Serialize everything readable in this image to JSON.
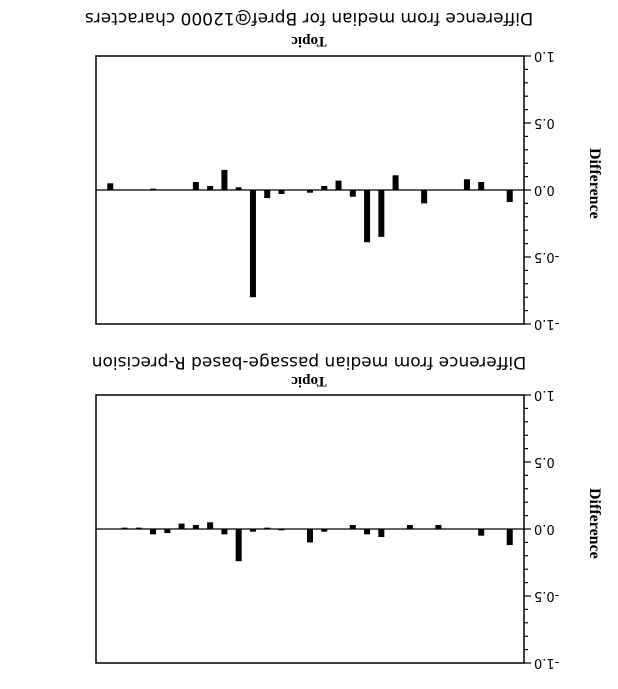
{
  "chart_data": [
    {
      "type": "bar",
      "title": "Difference from median passage-based R-precision",
      "xlabel": "Topic",
      "ylabel": "Difference",
      "ylim": [
        -1.0,
        1.0
      ],
      "yticks": [
        "-1.0",
        "-0.5",
        "0.0",
        "0.5",
        "1.0"
      ],
      "grid": false,
      "values": [
        -0.12,
        0.0,
        -0.05,
        0.0,
        0.0,
        0.03,
        0.0,
        0.03,
        0.0,
        -0.06,
        -0.04,
        0.03,
        0.0,
        -0.02,
        -0.1,
        0.0,
        -0.01,
        0.01,
        -0.02,
        -0.24,
        -0.04,
        0.05,
        0.03,
        0.04,
        -0.03,
        -0.04,
        0.01,
        0.01,
        0.0
      ]
    },
    {
      "type": "bar",
      "title": "Difference from median for Bpref@12000 characters",
      "xlabel": "Topic",
      "ylabel": "Difference",
      "ylim": [
        -1.0,
        1.0
      ],
      "yticks": [
        "-1.0",
        "-0.5",
        "0.0",
        "0.5",
        "1.0"
      ],
      "grid": false,
      "values": [
        -0.09,
        0.0,
        0.06,
        0.08,
        0.0,
        0.0,
        -0.1,
        0.0,
        0.11,
        -0.35,
        -0.39,
        -0.05,
        0.07,
        0.03,
        -0.02,
        0.0,
        -0.03,
        -0.06,
        -0.8,
        0.02,
        0.15,
        0.03,
        0.06,
        0.0,
        0.0,
        0.01,
        0.0,
        0.0,
        0.05
      ]
    }
  ]
}
